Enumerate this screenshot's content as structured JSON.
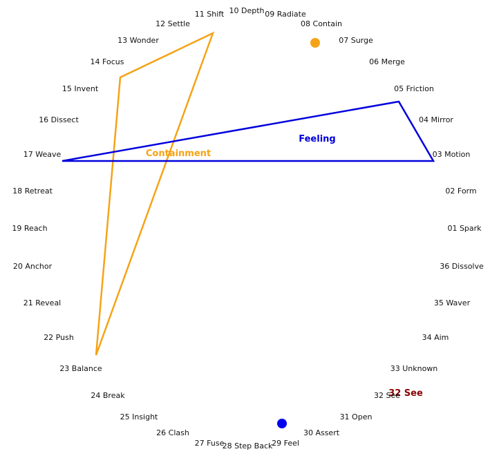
{
  "labels": [
    "10 Depth",
    "09 Radiate",
    "08 Contain",
    "07 Surge",
    "06 Merge",
    "05 Friction",
    "04 Mirror",
    "03 Motion",
    "02 Form",
    "01 Spark",
    "36 Dissolve",
    "35 Waver",
    "34 Aim",
    "33 Unknown",
    "32 See",
    "31 Open",
    "30 Assert",
    "29 Feel",
    "28 Step Back",
    "27 Fuse",
    "26 Clash",
    "25 Insight",
    "24 Break",
    "23 Balance",
    "22 Push",
    "21 Reveal",
    "20 Anchor",
    "19 Reach",
    "18 Retreat",
    "17 Weave",
    "16 Dissect",
    "15 Invent",
    "14 Focus",
    "13 Wonder",
    "12 Settle",
    "11 Shift"
  ],
  "annotations": {
    "feeling": "Feeling",
    "containment": "Containment",
    "highlight": "32 See"
  },
  "colors": {
    "feeling": "#0000dd",
    "containment": "#f5a316",
    "highlight": "#8b0000",
    "text": "#111111"
  }
}
